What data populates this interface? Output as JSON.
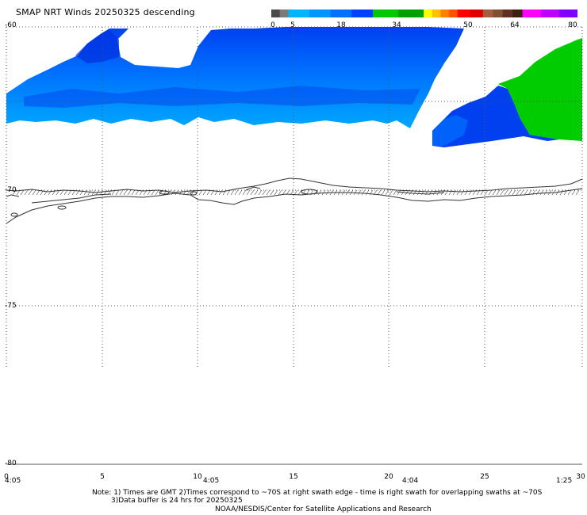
{
  "title": "SMAP NRT Winds  20250325 descending",
  "colorbar": {
    "labels": [
      "0",
      "5",
      "18",
      "34",
      "50",
      "64",
      "80"
    ],
    "segments": [
      "#4a4a4a",
      "#7a7a7a",
      "#00b4ff",
      "#0096ff",
      "#0070ff",
      "#0040ff",
      "#00c800",
      "#00a000",
      "#ffff00",
      "#ffc000",
      "#ff8000",
      "#ff5000",
      "#ff0000",
      "#e00000",
      "#a06040",
      "#805030",
      "#603020",
      "#402010",
      "#ff00ff",
      "#c000ff",
      "#8000ff"
    ]
  },
  "map": {
    "lat_labels": [
      "-60",
      "-70",
      "-75",
      "-80"
    ],
    "lon_labels": [
      "0",
      "5",
      "10",
      "15",
      "20",
      "25",
      "30"
    ],
    "time_labels": [
      "4:05",
      "4:05",
      "4:04",
      "1:25"
    ],
    "colors": {
      "swath_light": "#0090ff",
      "swath_dark": "#0030ee",
      "swath_green": "#00cc00",
      "gridline": "#666666",
      "coastline": "#333333"
    }
  },
  "notes": {
    "line1": "Note: 1) Times are GMT 2)Times correspond to ~70S at right swath edge - time is right swath for overlapping swaths at ~70S",
    "line2": "3)Data buffer is 24 hrs for 20250325",
    "line3": "NOAA/NESDIS/Center for Satellite Applications and Research"
  }
}
